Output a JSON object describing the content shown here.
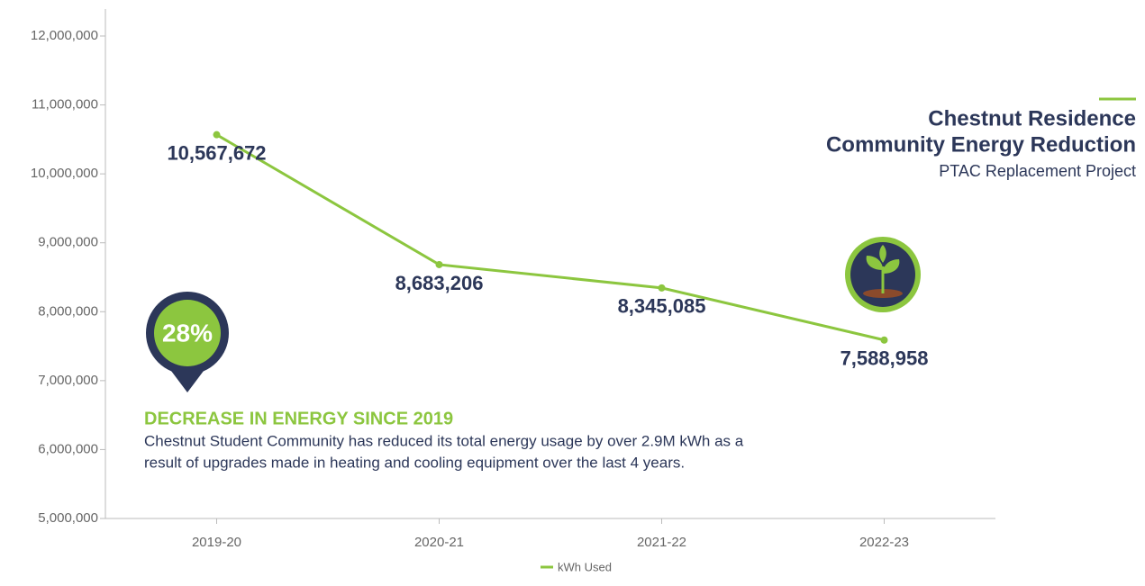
{
  "chart_data": {
    "type": "line",
    "title": [
      "Chestnut Residence",
      "Community Energy Reduction"
    ],
    "subtitle": "PTAC Replacement Project",
    "categories": [
      "2019-20",
      "2020-21",
      "2021-22",
      "2022-23"
    ],
    "series": [
      {
        "name": "kWh Used",
        "color": "#8cc63f",
        "values": [
          10567672,
          8683206,
          8345085,
          7588958
        ],
        "value_labels": [
          "10,567,672",
          "8,683,206",
          "8,345,085",
          "7,588,958"
        ]
      }
    ],
    "ylim": [
      5000000,
      12000000
    ],
    "yticks": [
      {
        "value": 5000000,
        "label": "5,000,000"
      },
      {
        "value": 6000000,
        "label": "6,000,000"
      },
      {
        "value": 7000000,
        "label": "7,000,000"
      },
      {
        "value": 8000000,
        "label": "8,000,000"
      },
      {
        "value": 9000000,
        "label": "9,000,000"
      },
      {
        "value": 10000000,
        "label": "10,000,000"
      },
      {
        "value": 11000000,
        "label": "11,000,000"
      },
      {
        "value": 12000000,
        "label": "12,000,000"
      }
    ],
    "legend": "bottom",
    "annotations": {
      "badge": "28%",
      "heading": "DECREASE IN ENERGY SINCE 2019",
      "text": [
        "Chestnut Student Community has reduced its total energy usage by over 2.9M kWh as a",
        "result of upgrades made in heating and cooling equipment over the last 4 years."
      ]
    }
  }
}
